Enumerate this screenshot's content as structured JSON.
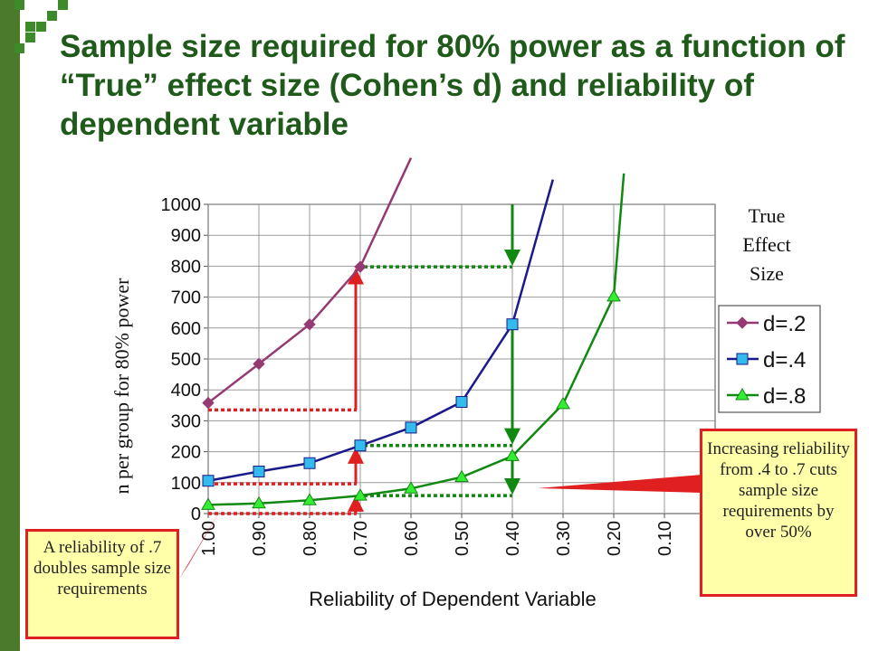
{
  "slide": {
    "title": "Sample size required for 80% power as a function of “True” effect size (Cohen’s d) and reliability of dependent variable",
    "accent_color": "#1f5a1b",
    "logo_color": "#3c8a2a"
  },
  "callouts": {
    "left": "A reliability of .7 doubles sample size requirements",
    "right": "Increasing reliability from .4 to .7 cuts sample size requirements by over 50%"
  },
  "chart_data": {
    "type": "line",
    "title": "",
    "xlabel": "Reliability of Dependent Variable",
    "ylabel": "n per group for 80% power",
    "x_ticks": [
      "1.00",
      "0.90",
      "0.80",
      "0.70",
      "0.60",
      "0.50",
      "0.40",
      "0.30",
      "0.20",
      "0.10"
    ],
    "x_reversed": true,
    "ylim": [
      0,
      1000
    ],
    "y_ticks": [
      0,
      100,
      200,
      300,
      400,
      500,
      600,
      700,
      800,
      900,
      1000
    ],
    "grid": true,
    "legend_title": "True Effect Size",
    "legend_position": "right",
    "series": [
      {
        "name": "d=.2",
        "color": "#953a73",
        "marker": "diamond",
        "x": [
          1.0,
          0.9,
          0.8,
          0.7
        ],
        "y": [
          358,
          484,
          612,
          798
        ],
        "extends_above": {
          "x": 0.6,
          "y": 1150
        }
      },
      {
        "name": "d=.4",
        "color": "#1a1a8a",
        "marker": "square",
        "marker_color": "#33bbee",
        "x": [
          1.0,
          0.9,
          0.8,
          0.7,
          0.6,
          0.5,
          0.4
        ],
        "y": [
          106,
          136,
          163,
          220,
          278,
          361,
          612
        ],
        "extends_above": {
          "x": 0.32,
          "y": 1080
        }
      },
      {
        "name": "d=.8",
        "color": "#118811",
        "marker": "triangle",
        "marker_color": "#33ee33",
        "x": [
          1.0,
          0.9,
          0.8,
          0.7,
          0.6,
          0.5,
          0.4,
          0.3,
          0.2
        ],
        "y": [
          28,
          33,
          43,
          58,
          81,
          118,
          186,
          354,
          702
        ],
        "extends_above": {
          "x": 0.18,
          "y": 1100
        }
      }
    ],
    "annotations": {
      "red_arrow_color": "#e02020",
      "green_arrow_color": "#118811",
      "red_dashes": [
        {
          "x1": 1.0,
          "x2": 0.7,
          "y": 335
        },
        {
          "x1": 1.0,
          "x2": 0.7,
          "y": 96
        },
        {
          "x1": 1.0,
          "x2": 0.7,
          "y": 0
        }
      ],
      "red_arrows": [
        {
          "x": 0.7,
          "y1": 335,
          "y2": 785
        },
        {
          "x": 0.7,
          "y1": 96,
          "y2": 205
        },
        {
          "x": 0.7,
          "y1": 0,
          "y2": 50
        }
      ],
      "green_dashes": [
        {
          "x1": 0.7,
          "x2": 0.4,
          "y": 798
        },
        {
          "x1": 0.7,
          "x2": 0.4,
          "y": 220
        },
        {
          "x1": 0.7,
          "x2": 0.4,
          "y": 58
        }
      ],
      "green_arrows": [
        {
          "x": 0.4,
          "y1": 1000,
          "y2": 810
        },
        {
          "x": 0.4,
          "y1": 612,
          "y2": 232
        },
        {
          "x": 0.4,
          "y1": 186,
          "y2": 70
        }
      ]
    }
  }
}
